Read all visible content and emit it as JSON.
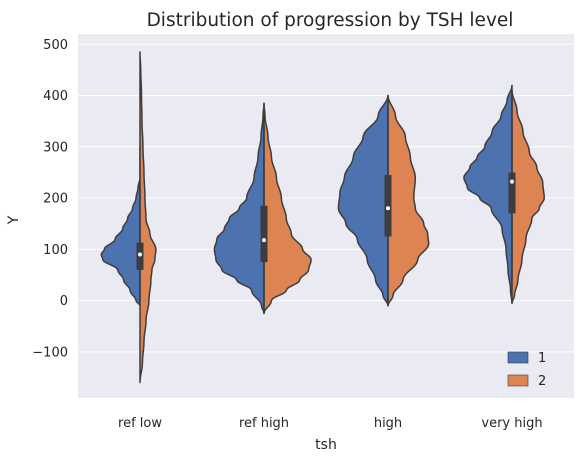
{
  "chart_data": {
    "type": "violin",
    "title": "Distribution of progression by TSH level",
    "xlabel": "tsh",
    "ylabel": "Y",
    "categories": [
      "ref low",
      "ref high",
      "high",
      "very high"
    ],
    "ylim": [
      -190,
      520
    ],
    "yticks": [
      -100,
      0,
      100,
      200,
      300,
      400,
      500
    ],
    "grid": true,
    "legend": {
      "position": "bottom-right",
      "entries": [
        "1",
        "2"
      ]
    },
    "colors": {
      "1": "#4c72b0",
      "2": "#dd8452",
      "background": "#eaeaf2",
      "grid": "#ffffff",
      "outline": "#3d3d3d"
    },
    "series": [
      {
        "name": "1",
        "violins": [
          {
            "profile": [
              [
                -10,
                0
              ],
              [
                0,
                0.08
              ],
              [
                20,
                0.2
              ],
              [
                40,
                0.33
              ],
              [
                60,
                0.45
              ],
              [
                80,
                0.75
              ],
              [
                90,
                0.78
              ],
              [
                100,
                0.72
              ],
              [
                120,
                0.5
              ],
              [
                140,
                0.35
              ],
              [
                160,
                0.25
              ],
              [
                180,
                0.15
              ],
              [
                200,
                0.08
              ],
              [
                220,
                0.04
              ],
              [
                240,
                0
              ],
              [
                300,
                0
              ]
            ]
          },
          {
            "profile": [
              [
                -25,
                0
              ],
              [
                -10,
                0.05
              ],
              [
                20,
                0.25
              ],
              [
                40,
                0.55
              ],
              [
                60,
                0.85
              ],
              [
                80,
                0.97
              ],
              [
                100,
                1.0
              ],
              [
                120,
                0.95
              ],
              [
                140,
                0.8
              ],
              [
                160,
                0.7
              ],
              [
                180,
                0.5
              ],
              [
                200,
                0.35
              ],
              [
                240,
                0.2
              ],
              [
                280,
                0.12
              ],
              [
                320,
                0.06
              ],
              [
                360,
                0.02
              ],
              [
                385,
                0
              ]
            ]
          },
          {
            "profile": [
              [
                -10,
                0
              ],
              [
                10,
                0.1
              ],
              [
                40,
                0.25
              ],
              [
                80,
                0.42
              ],
              [
                120,
                0.62
              ],
              [
                150,
                0.85
              ],
              [
                180,
                1.0
              ],
              [
                210,
                0.97
              ],
              [
                240,
                0.88
              ],
              [
                280,
                0.7
              ],
              [
                320,
                0.5
              ],
              [
                360,
                0.2
              ],
              [
                400,
                0
              ]
            ]
          },
          {
            "profile": [
              [
                -5,
                0
              ],
              [
                20,
                0.03
              ],
              [
                60,
                0.08
              ],
              [
                100,
                0.12
              ],
              [
                140,
                0.2
              ],
              [
                180,
                0.42
              ],
              [
                200,
                0.65
              ],
              [
                220,
                0.9
              ],
              [
                240,
                0.97
              ],
              [
                260,
                0.85
              ],
              [
                280,
                0.7
              ],
              [
                300,
                0.55
              ],
              [
                330,
                0.4
              ],
              [
                360,
                0.22
              ],
              [
                390,
                0.1
              ],
              [
                420,
                0
              ]
            ]
          }
        ]
      },
      {
        "name": "2",
        "violins": [
          {
            "profile": [
              [
                -160,
                0
              ],
              [
                -120,
                0.05
              ],
              [
                -80,
                0.08
              ],
              [
                -40,
                0.12
              ],
              [
                0,
                0.18
              ],
              [
                40,
                0.22
              ],
              [
                60,
                0.24
              ],
              [
                80,
                0.3
              ],
              [
                100,
                0.32
              ],
              [
                130,
                0.2
              ],
              [
                160,
                0.12
              ],
              [
                200,
                0.1
              ],
              [
                250,
                0.08
              ],
              [
                300,
                0.06
              ],
              [
                350,
                0.04
              ],
              [
                400,
                0.03
              ],
              [
                450,
                0.015
              ],
              [
                485,
                0
              ]
            ]
          },
          {
            "profile": [
              [
                -25,
                0
              ],
              [
                0,
                0.15
              ],
              [
                20,
                0.45
              ],
              [
                40,
                0.72
              ],
              [
                60,
                0.9
              ],
              [
                80,
                0.95
              ],
              [
                100,
                0.78
              ],
              [
                130,
                0.55
              ],
              [
                160,
                0.45
              ],
              [
                200,
                0.35
              ],
              [
                240,
                0.25
              ],
              [
                280,
                0.15
              ],
              [
                320,
                0.08
              ],
              [
                360,
                0.02
              ],
              [
                385,
                0
              ]
            ]
          },
          {
            "profile": [
              [
                -10,
                0
              ],
              [
                10,
                0.1
              ],
              [
                40,
                0.3
              ],
              [
                80,
                0.6
              ],
              [
                110,
                0.82
              ],
              [
                130,
                0.8
              ],
              [
                150,
                0.72
              ],
              [
                180,
                0.55
              ],
              [
                200,
                0.52
              ],
              [
                240,
                0.55
              ],
              [
                280,
                0.45
              ],
              [
                320,
                0.35
              ],
              [
                360,
                0.15
              ],
              [
                400,
                0
              ]
            ]
          },
          {
            "profile": [
              [
                -5,
                0
              ],
              [
                10,
                0.05
              ],
              [
                40,
                0.12
              ],
              [
                80,
                0.2
              ],
              [
                120,
                0.28
              ],
              [
                160,
                0.4
              ],
              [
                180,
                0.55
              ],
              [
                200,
                0.65
              ],
              [
                230,
                0.62
              ],
              [
                260,
                0.5
              ],
              [
                290,
                0.35
              ],
              [
                330,
                0.22
              ],
              [
                370,
                0.1
              ],
              [
                410,
                0
              ]
            ]
          }
        ]
      }
    ],
    "boxes": [
      {
        "q1": 60,
        "q3": 113,
        "median": 90,
        "wmin": -5,
        "wmax": 225
      },
      {
        "q1": 75,
        "q3": 185,
        "median": 118,
        "wmin": -20,
        "wmax": 340
      },
      {
        "q1": 125,
        "q3": 245,
        "median": 180,
        "wmin": -5,
        "wmax": 390
      },
      {
        "q1": 170,
        "q3": 250,
        "median": 232,
        "wmin": 40,
        "wmax": 395
      }
    ]
  }
}
